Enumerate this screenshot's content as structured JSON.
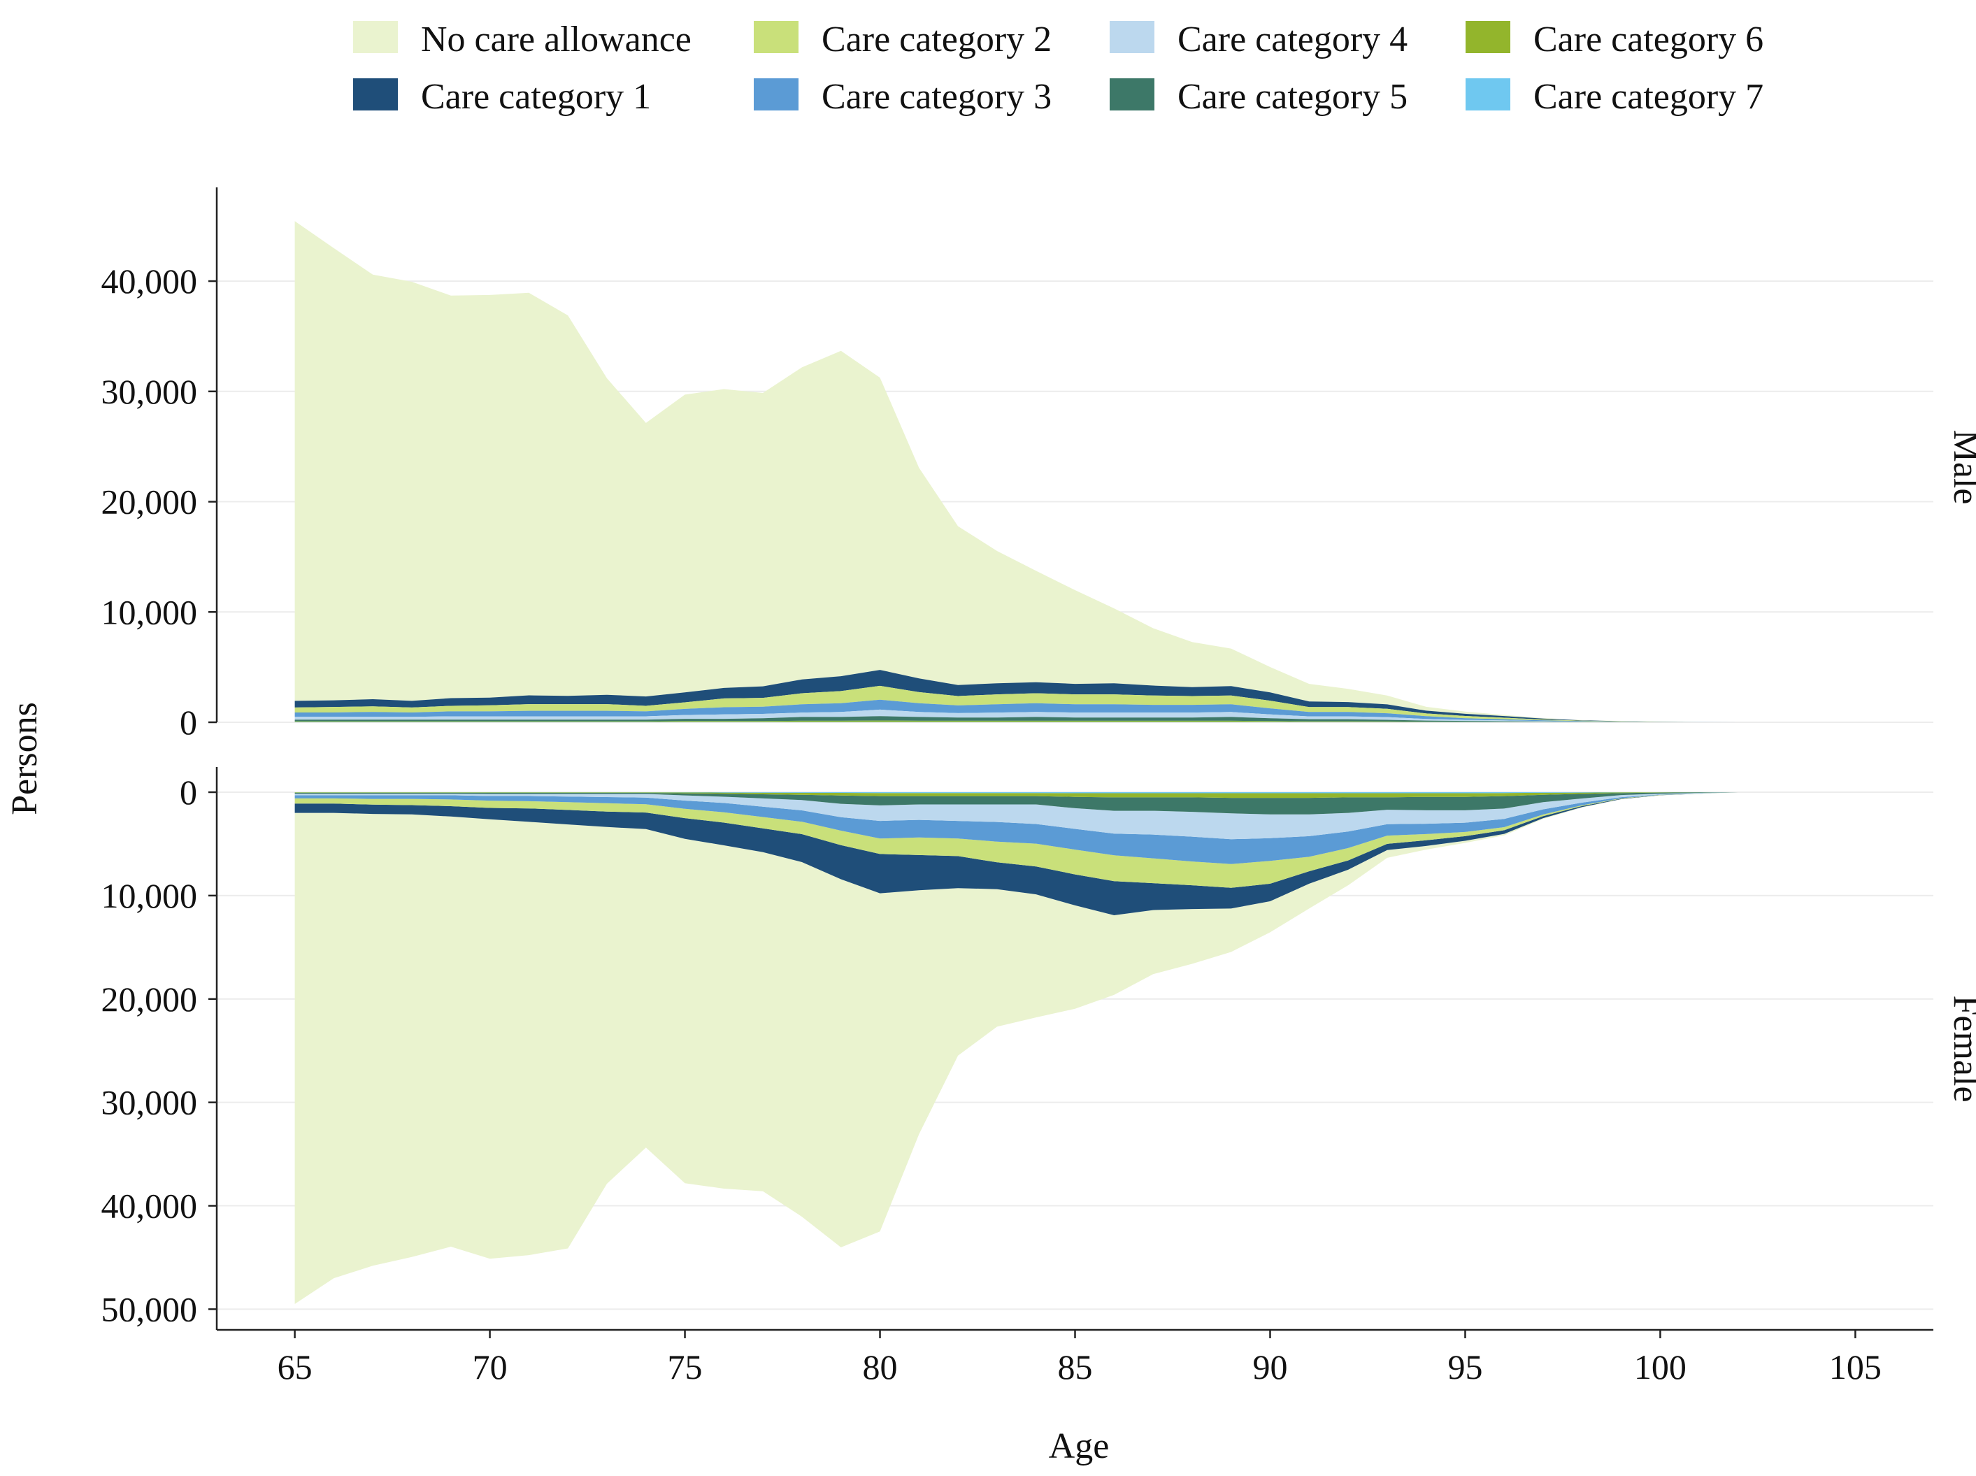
{
  "chart_data": {
    "type": "area",
    "stacked": true,
    "xlabel": "Age",
    "ylabel": "Persons",
    "x_ticks": [
      65,
      70,
      75,
      80,
      85,
      90,
      95,
      100,
      105
    ],
    "x_range": [
      63,
      107
    ],
    "legend": {
      "placement": "top",
      "entries": [
        {
          "key": "none",
          "label": "No care allowance",
          "color": "#EAF3CF"
        },
        {
          "key": "c2",
          "label": "Care category 2",
          "color": "#C9E07A"
        },
        {
          "key": "c4",
          "label": "Care category 4",
          "color": "#BCD8EE"
        },
        {
          "key": "c6",
          "label": "Care category 6",
          "color": "#93B52C"
        },
        {
          "key": "c1",
          "label": "Care category 1",
          "color": "#1F4E79"
        },
        {
          "key": "c3",
          "label": "Care category 3",
          "color": "#5B9BD5"
        },
        {
          "key": "c5",
          "label": "Care category 5",
          "color": "#3D7868"
        },
        {
          "key": "c7",
          "label": "Care category 7",
          "color": "#6FC8F0"
        }
      ]
    },
    "stack_order": [
      "c7",
      "c6",
      "c5",
      "c4",
      "c3",
      "c2",
      "c1",
      "none"
    ],
    "ages": [
      65,
      66,
      67,
      68,
      69,
      70,
      71,
      72,
      73,
      74,
      75,
      76,
      77,
      78,
      79,
      80,
      81,
      82,
      83,
      84,
      85,
      86,
      87,
      88,
      89,
      90,
      91,
      92,
      93,
      94,
      95,
      96,
      97,
      98,
      99,
      100,
      101,
      102,
      103,
      104,
      105
    ],
    "panels": [
      {
        "strip": "Male",
        "direction": "up",
        "ylim": [
          0,
          48500
        ],
        "y_ticks": [
          0,
          10000,
          20000,
          30000,
          40000
        ],
        "y_tick_labels": [
          "0",
          "10,000",
          "20,000",
          "30,000",
          "40,000"
        ],
        "series": {
          "none": [
            43500,
            41000,
            38500,
            38000,
            36500,
            36500,
            36500,
            34500,
            28700,
            24800,
            27000,
            27100,
            26600,
            28300,
            29500,
            26500,
            19100,
            14400,
            12000,
            10100,
            8500,
            6800,
            5200,
            4100,
            3400,
            2300,
            1600,
            1200,
            800,
            350,
            200,
            100,
            50,
            30,
            20,
            10,
            0,
            0,
            0,
            0,
            0
          ],
          "c1": [
            600,
            600,
            650,
            600,
            700,
            700,
            800,
            750,
            850,
            850,
            900,
            950,
            1050,
            1250,
            1350,
            1450,
            1250,
            1000,
            1000,
            1000,
            950,
            1000,
            900,
            800,
            850,
            750,
            500,
            450,
            400,
            250,
            200,
            150,
            80,
            40,
            20,
            10,
            5,
            0,
            0,
            0,
            0
          ],
          "c2": [
            450,
            500,
            500,
            450,
            500,
            550,
            600,
            600,
            600,
            500,
            600,
            800,
            800,
            1000,
            1100,
            1250,
            1000,
            850,
            900,
            900,
            900,
            900,
            850,
            800,
            800,
            700,
            450,
            450,
            400,
            250,
            200,
            150,
            80,
            40,
            20,
            10,
            5,
            0,
            0,
            0,
            0
          ],
          "c3": [
            400,
            400,
            450,
            400,
            450,
            450,
            500,
            500,
            500,
            450,
            550,
            650,
            650,
            750,
            800,
            900,
            800,
            700,
            750,
            800,
            750,
            750,
            700,
            700,
            700,
            550,
            400,
            400,
            350,
            250,
            150,
            100,
            60,
            40,
            20,
            10,
            5,
            0,
            0,
            0,
            0
          ],
          "c4": [
            250,
            250,
            250,
            250,
            300,
            300,
            300,
            300,
            300,
            300,
            350,
            400,
            400,
            400,
            450,
            600,
            450,
            400,
            450,
            450,
            450,
            450,
            450,
            450,
            450,
            350,
            250,
            250,
            250,
            150,
            100,
            80,
            50,
            30,
            20,
            10,
            5,
            0,
            0,
            0,
            0
          ],
          "c5": [
            150,
            150,
            150,
            150,
            150,
            150,
            150,
            150,
            150,
            150,
            200,
            200,
            250,
            350,
            350,
            400,
            350,
            300,
            300,
            350,
            300,
            300,
            300,
            300,
            350,
            250,
            200,
            200,
            150,
            100,
            80,
            60,
            40,
            20,
            10,
            5,
            0,
            0,
            0,
            0,
            0
          ],
          "c6": [
            60,
            60,
            60,
            60,
            60,
            60,
            60,
            60,
            60,
            60,
            80,
            80,
            80,
            100,
            100,
            120,
            100,
            100,
            100,
            100,
            100,
            100,
            100,
            100,
            100,
            80,
            60,
            60,
            50,
            40,
            30,
            20,
            15,
            10,
            5,
            0,
            0,
            0,
            0,
            0,
            0
          ],
          "c7": [
            30,
            30,
            30,
            30,
            30,
            30,
            30,
            30,
            30,
            30,
            30,
            30,
            30,
            30,
            30,
            30,
            30,
            30,
            30,
            30,
            30,
            30,
            30,
            30,
            30,
            30,
            20,
            20,
            20,
            10,
            10,
            5,
            5,
            0,
            0,
            0,
            0,
            0,
            0,
            0,
            0
          ]
        }
      },
      {
        "strip": "Female",
        "direction": "down",
        "ylim": [
          0,
          52000
        ],
        "y_ticks": [
          0,
          10000,
          20000,
          30000,
          40000,
          50000
        ],
        "y_tick_labels": [
          "0",
          "10,000",
          "20,000",
          "30,000",
          "40,000",
          "50,000"
        ],
        "series": {
          "none": [
            47500,
            45000,
            43700,
            42800,
            41600,
            42500,
            41900,
            41000,
            34500,
            30800,
            33300,
            33200,
            32800,
            34300,
            35600,
            32700,
            23600,
            16200,
            13300,
            11900,
            10000,
            7700,
            6200,
            5300,
            4200,
            3000,
            2400,
            1500,
            750,
            350,
            200,
            150,
            80,
            40,
            20,
            10,
            0,
            0,
            0,
            0,
            0
          ],
          "c1": [
            900,
            900,
            900,
            900,
            1000,
            1100,
            1300,
            1400,
            1500,
            1600,
            2000,
            2200,
            2300,
            2700,
            3300,
            3800,
            3400,
            3100,
            2600,
            2700,
            3000,
            3300,
            2600,
            2300,
            2000,
            1700,
            1200,
            900,
            600,
            550,
            450,
            350,
            200,
            100,
            50,
            20,
            10,
            0,
            0,
            0,
            0
          ],
          "c2": [
            500,
            500,
            550,
            600,
            650,
            700,
            700,
            750,
            800,
            800,
            900,
            1000,
            1100,
            1200,
            1400,
            1500,
            1700,
            1700,
            2000,
            2200,
            2400,
            2500,
            2400,
            2300,
            2300,
            2200,
            1400,
            1200,
            800,
            600,
            400,
            300,
            150,
            80,
            40,
            20,
            10,
            0,
            0,
            0,
            0
          ],
          "c3": [
            300,
            300,
            350,
            350,
            400,
            450,
            500,
            550,
            600,
            650,
            800,
            900,
            1000,
            1100,
            1300,
            1700,
            1700,
            1700,
            1900,
            1900,
            2000,
            2100,
            2300,
            2400,
            2400,
            2200,
            2000,
            1600,
            1100,
            1000,
            900,
            800,
            500,
            250,
            100,
            40,
            20,
            0,
            0,
            0,
            0
          ],
          "c4": [
            150,
            150,
            150,
            150,
            150,
            200,
            200,
            250,
            300,
            350,
            500,
            600,
            800,
            1000,
            1300,
            1500,
            1500,
            1600,
            1700,
            1900,
            2000,
            2200,
            2300,
            2400,
            2500,
            2300,
            2100,
            1800,
            1400,
            1300,
            1200,
            1000,
            700,
            400,
            200,
            80,
            40,
            0,
            0,
            0,
            0
          ],
          "c5": [
            80,
            80,
            80,
            80,
            80,
            100,
            100,
            100,
            100,
            100,
            200,
            300,
            400,
            500,
            800,
            900,
            800,
            800,
            800,
            800,
            1100,
            1300,
            1300,
            1400,
            1500,
            1600,
            1600,
            1500,
            1200,
            1300,
            1300,
            1200,
            700,
            450,
            200,
            100,
            50,
            0,
            0,
            0,
            0
          ],
          "c6": [
            50,
            50,
            50,
            50,
            50,
            50,
            50,
            50,
            50,
            50,
            80,
            100,
            150,
            200,
            250,
            300,
            300,
            300,
            300,
            300,
            350,
            400,
            400,
            400,
            450,
            450,
            450,
            400,
            400,
            350,
            350,
            300,
            200,
            120,
            60,
            30,
            15,
            0,
            0,
            0,
            0
          ],
          "c7": [
            20,
            20,
            20,
            20,
            20,
            20,
            20,
            20,
            20,
            20,
            30,
            40,
            50,
            60,
            70,
            80,
            80,
            80,
            80,
            80,
            100,
            100,
            100,
            100,
            100,
            100,
            100,
            100,
            100,
            100,
            100,
            80,
            60,
            40,
            20,
            10,
            5,
            0,
            0,
            0,
            0
          ]
        }
      }
    ]
  }
}
